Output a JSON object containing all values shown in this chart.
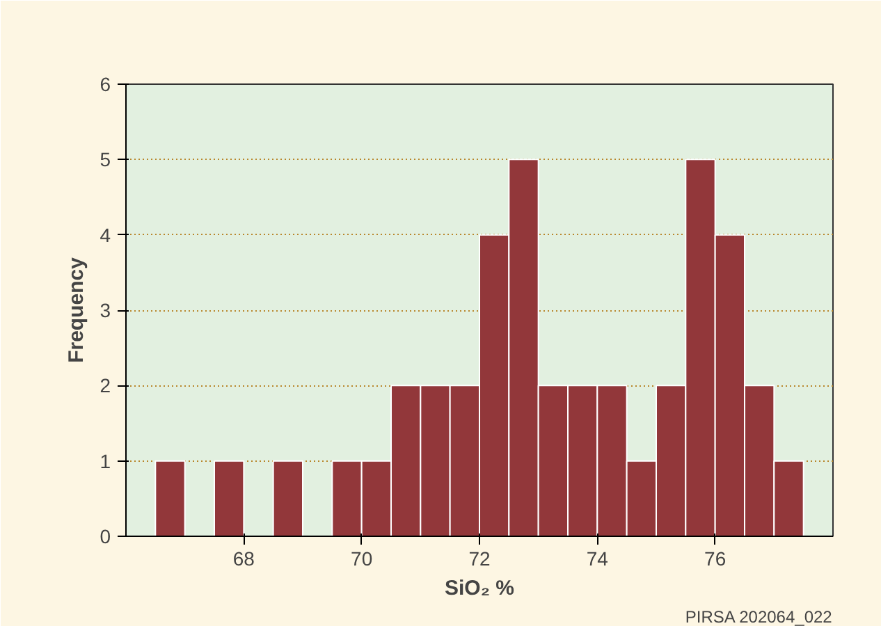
{
  "chart_data": {
    "type": "histogram",
    "xlabel": "SiO₂ %",
    "ylabel": "Frequency",
    "bins": [
      66.5,
      67,
      67.5,
      68,
      68.5,
      69,
      69.5,
      70,
      70.5,
      71,
      71.5,
      72,
      72.5,
      73,
      73.5,
      74,
      74.5,
      75,
      75.5,
      76,
      76.5,
      77,
      77.5
    ],
    "values": [
      1,
      0,
      1,
      0,
      1,
      0,
      1,
      1,
      2,
      2,
      2,
      4,
      5,
      2,
      2,
      2,
      1,
      2,
      5,
      4,
      2,
      1
    ],
    "color": "#92373a",
    "xlim": [
      66,
      78
    ],
    "xticks": [
      68,
      70,
      72,
      74,
      76
    ],
    "ylim": [
      0,
      6
    ],
    "yticks": [
      0,
      1,
      2,
      3,
      4,
      5,
      6
    ],
    "grid": "y",
    "annotations": [
      "PIRSA 202064_022"
    ]
  }
}
